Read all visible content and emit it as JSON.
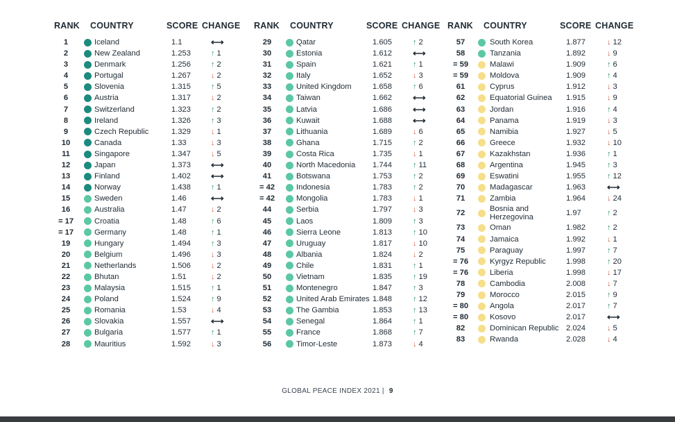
{
  "headers": {
    "rank": "RANK",
    "country": "COUNTRY",
    "score": "SCORE",
    "change": "CHANGE"
  },
  "colors": {
    "tier1": "#1d8a7e",
    "tier2": "#5cc7a4",
    "tier3": "#f6de8a",
    "up": "#2a8f5b",
    "down": "#d0573c"
  },
  "footer": {
    "text": "GLOBAL PEACE INDEX 2021",
    "separator": "|",
    "page": "9"
  },
  "columns": [
    [
      {
        "rank": "1",
        "country": "Iceland",
        "score": "1.1",
        "dir": "same",
        "delta": "",
        "tier": 1
      },
      {
        "rank": "2",
        "country": "New Zealand",
        "score": "1.253",
        "dir": "up",
        "delta": "1",
        "tier": 1
      },
      {
        "rank": "3",
        "country": "Denmark",
        "score": "1.256",
        "dir": "up",
        "delta": "2",
        "tier": 1
      },
      {
        "rank": "4",
        "country": "Portugal",
        "score": "1.267",
        "dir": "down",
        "delta": "2",
        "tier": 1
      },
      {
        "rank": "5",
        "country": "Slovenia",
        "score": "1.315",
        "dir": "up",
        "delta": "5",
        "tier": 1
      },
      {
        "rank": "6",
        "country": "Austria",
        "score": "1.317",
        "dir": "down",
        "delta": "2",
        "tier": 1
      },
      {
        "rank": "7",
        "country": "Switzerland",
        "score": "1.323",
        "dir": "up",
        "delta": "2",
        "tier": 1
      },
      {
        "rank": "8",
        "country": "Ireland",
        "score": "1.326",
        "dir": "up",
        "delta": "3",
        "tier": 1
      },
      {
        "rank": "9",
        "country": "Czech Republic",
        "score": "1.329",
        "dir": "down",
        "delta": "1",
        "tier": 1
      },
      {
        "rank": "10",
        "country": "Canada",
        "score": "1.33",
        "dir": "down",
        "delta": "3",
        "tier": 1
      },
      {
        "rank": "11",
        "country": "Singapore",
        "score": "1.347",
        "dir": "down",
        "delta": "5",
        "tier": 1
      },
      {
        "rank": "12",
        "country": "Japan",
        "score": "1.373",
        "dir": "same",
        "delta": "",
        "tier": 1
      },
      {
        "rank": "13",
        "country": "Finland",
        "score": "1.402",
        "dir": "same",
        "delta": "",
        "tier": 1
      },
      {
        "rank": "14",
        "country": "Norway",
        "score": "1.438",
        "dir": "up",
        "delta": "1",
        "tier": 1
      },
      {
        "rank": "15",
        "country": "Sweden",
        "score": "1.46",
        "dir": "same",
        "delta": "",
        "tier": 2
      },
      {
        "rank": "16",
        "country": "Australia",
        "score": "1.47",
        "dir": "down",
        "delta": "2",
        "tier": 2
      },
      {
        "rank": "= 17",
        "country": "Croatia",
        "score": "1.48",
        "dir": "up",
        "delta": "6",
        "tier": 2
      },
      {
        "rank": "= 17",
        "country": "Germany",
        "score": "1.48",
        "dir": "up",
        "delta": "1",
        "tier": 2
      },
      {
        "rank": "19",
        "country": "Hungary",
        "score": "1.494",
        "dir": "up",
        "delta": "3",
        "tier": 2
      },
      {
        "rank": "20",
        "country": "Belgium",
        "score": "1.496",
        "dir": "down",
        "delta": "3",
        "tier": 2
      },
      {
        "rank": "21",
        "country": "Netherlands",
        "score": "1.506",
        "dir": "down",
        "delta": "2",
        "tier": 2
      },
      {
        "rank": "22",
        "country": "Bhutan",
        "score": "1.51",
        "dir": "down",
        "delta": "2",
        "tier": 2
      },
      {
        "rank": "23",
        "country": "Malaysia",
        "score": "1.515",
        "dir": "up",
        "delta": "1",
        "tier": 2
      },
      {
        "rank": "24",
        "country": "Poland",
        "score": "1.524",
        "dir": "up",
        "delta": "9",
        "tier": 2
      },
      {
        "rank": "25",
        "country": "Romania",
        "score": "1.53",
        "dir": "down",
        "delta": "4",
        "tier": 2
      },
      {
        "rank": "26",
        "country": "Slovakia",
        "score": "1.557",
        "dir": "same",
        "delta": "",
        "tier": 2
      },
      {
        "rank": "27",
        "country": "Bulgaria",
        "score": "1.577",
        "dir": "up",
        "delta": "1",
        "tier": 2
      },
      {
        "rank": "28",
        "country": "Mauritius",
        "score": "1.592",
        "dir": "down",
        "delta": "3",
        "tier": 2
      }
    ],
    [
      {
        "rank": "29",
        "country": "Qatar",
        "score": "1.605",
        "dir": "up",
        "delta": "2",
        "tier": 2
      },
      {
        "rank": "30",
        "country": "Estonia",
        "score": "1.612",
        "dir": "same",
        "delta": "",
        "tier": 2
      },
      {
        "rank": "31",
        "country": "Spain",
        "score": "1.621",
        "dir": "up",
        "delta": "1",
        "tier": 2
      },
      {
        "rank": "32",
        "country": "Italy",
        "score": "1.652",
        "dir": "down",
        "delta": "3",
        "tier": 2
      },
      {
        "rank": "33",
        "country": "United Kingdom",
        "score": "1.658",
        "dir": "up",
        "delta": "6",
        "tier": 2
      },
      {
        "rank": "34",
        "country": "Taiwan",
        "score": "1.662",
        "dir": "same",
        "delta": "",
        "tier": 2
      },
      {
        "rank": "35",
        "country": "Latvia",
        "score": "1.686",
        "dir": "same",
        "delta": "",
        "tier": 2
      },
      {
        "rank": "36",
        "country": "Kuwait",
        "score": "1.688",
        "dir": "same",
        "delta": "",
        "tier": 2
      },
      {
        "rank": "37",
        "country": "Lithuania",
        "score": "1.689",
        "dir": "down",
        "delta": "6",
        "tier": 2
      },
      {
        "rank": "38",
        "country": "Ghana",
        "score": "1.715",
        "dir": "up",
        "delta": "2",
        "tier": 2
      },
      {
        "rank": "39",
        "country": "Costa Rica",
        "score": "1.735",
        "dir": "down",
        "delta": "1",
        "tier": 2
      },
      {
        "rank": "40",
        "country": "North Macedonia",
        "score": "1.744",
        "dir": "up",
        "delta": "11",
        "tier": 2
      },
      {
        "rank": "41",
        "country": "Botswana",
        "score": "1.753",
        "dir": "up",
        "delta": "2",
        "tier": 2
      },
      {
        "rank": "= 42",
        "country": "Indonesia",
        "score": "1.783",
        "dir": "up",
        "delta": "2",
        "tier": 2
      },
      {
        "rank": "= 42",
        "country": "Mongolia",
        "score": "1.783",
        "dir": "down",
        "delta": "1",
        "tier": 2
      },
      {
        "rank": "44",
        "country": "Serbia",
        "score": "1.797",
        "dir": "down",
        "delta": "3",
        "tier": 2
      },
      {
        "rank": "45",
        "country": "Laos",
        "score": "1.809",
        "dir": "up",
        "delta": "3",
        "tier": 2
      },
      {
        "rank": "46",
        "country": "Sierra Leone",
        "score": "1.813",
        "dir": "up",
        "delta": "10",
        "tier": 2
      },
      {
        "rank": "47",
        "country": "Uruguay",
        "score": "1.817",
        "dir": "down",
        "delta": "10",
        "tier": 2
      },
      {
        "rank": "48",
        "country": "Albania",
        "score": "1.824",
        "dir": "down",
        "delta": "2",
        "tier": 2
      },
      {
        "rank": "49",
        "country": "Chile",
        "score": "1.831",
        "dir": "up",
        "delta": "1",
        "tier": 2
      },
      {
        "rank": "50",
        "country": "Vietnam",
        "score": "1.835",
        "dir": "up",
        "delta": "19",
        "tier": 2
      },
      {
        "rank": "51",
        "country": "Montenegro",
        "score": "1.847",
        "dir": "up",
        "delta": "3",
        "tier": 2
      },
      {
        "rank": "52",
        "country": "United Arab Emirates",
        "score": "1.848",
        "dir": "up",
        "delta": "12",
        "tier": 2
      },
      {
        "rank": "53",
        "country": "The Gambia",
        "score": "1.853",
        "dir": "up",
        "delta": "13",
        "tier": 2
      },
      {
        "rank": "54",
        "country": "Senegal",
        "score": "1.864",
        "dir": "up",
        "delta": "1",
        "tier": 2
      },
      {
        "rank": "55",
        "country": "France",
        "score": "1.868",
        "dir": "up",
        "delta": "7",
        "tier": 2
      },
      {
        "rank": "56",
        "country": "Timor-Leste",
        "score": "1.873",
        "dir": "down",
        "delta": "4",
        "tier": 2
      }
    ],
    [
      {
        "rank": "57",
        "country": "South Korea",
        "score": "1.877",
        "dir": "down",
        "delta": "12",
        "tier": 2
      },
      {
        "rank": "58",
        "country": "Tanzania",
        "score": "1.892",
        "dir": "down",
        "delta": "9",
        "tier": 2
      },
      {
        "rank": "= 59",
        "country": "Malawi",
        "score": "1.909",
        "dir": "up",
        "delta": "6",
        "tier": 3
      },
      {
        "rank": "= 59",
        "country": "Moldova",
        "score": "1.909",
        "dir": "up",
        "delta": "4",
        "tier": 3
      },
      {
        "rank": "61",
        "country": "Cyprus",
        "score": "1.912",
        "dir": "down",
        "delta": "3",
        "tier": 3
      },
      {
        "rank": "62",
        "country": "Equatorial Guinea",
        "score": "1.915",
        "dir": "down",
        "delta": "9",
        "tier": 3
      },
      {
        "rank": "63",
        "country": "Jordan",
        "score": "1.916",
        "dir": "up",
        "delta": "4",
        "tier": 3
      },
      {
        "rank": "64",
        "country": "Panama",
        "score": "1.919",
        "dir": "down",
        "delta": "3",
        "tier": 3
      },
      {
        "rank": "65",
        "country": "Namibia",
        "score": "1.927",
        "dir": "down",
        "delta": "5",
        "tier": 3
      },
      {
        "rank": "66",
        "country": "Greece",
        "score": "1.932",
        "dir": "down",
        "delta": "10",
        "tier": 3
      },
      {
        "rank": "67",
        "country": "Kazakhstan",
        "score": "1.936",
        "dir": "up",
        "delta": "1",
        "tier": 3
      },
      {
        "rank": "68",
        "country": "Argentina",
        "score": "1.945",
        "dir": "up",
        "delta": "3",
        "tier": 3
      },
      {
        "rank": "69",
        "country": "Eswatini",
        "score": "1.955",
        "dir": "up",
        "delta": "12",
        "tier": 3
      },
      {
        "rank": "70",
        "country": "Madagascar",
        "score": "1.963",
        "dir": "same",
        "delta": "",
        "tier": 3
      },
      {
        "rank": "71",
        "country": "Zambia",
        "score": "1.964",
        "dir": "down",
        "delta": "24",
        "tier": 3
      },
      {
        "rank": "72",
        "country": "Bosnia and Herzegovina",
        "score": "1.97",
        "dir": "up",
        "delta": "2",
        "tier": 3,
        "tall": true
      },
      {
        "rank": "73",
        "country": "Oman",
        "score": "1.982",
        "dir": "up",
        "delta": "2",
        "tier": 3
      },
      {
        "rank": "74",
        "country": "Jamaica",
        "score": "1.992",
        "dir": "down",
        "delta": "1",
        "tier": 3
      },
      {
        "rank": "75",
        "country": "Paraguay",
        "score": "1.997",
        "dir": "up",
        "delta": "7",
        "tier": 3
      },
      {
        "rank": "= 76",
        "country": "Kyrgyz Republic",
        "score": "1.998",
        "dir": "up",
        "delta": "20",
        "tier": 3
      },
      {
        "rank": "= 76",
        "country": "Liberia",
        "score": "1.998",
        "dir": "down",
        "delta": "17",
        "tier": 3
      },
      {
        "rank": "78",
        "country": "Cambodia",
        "score": "2.008",
        "dir": "down",
        "delta": "7",
        "tier": 3
      },
      {
        "rank": "79",
        "country": "Morocco",
        "score": "2.015",
        "dir": "up",
        "delta": "9",
        "tier": 3
      },
      {
        "rank": "= 80",
        "country": "Angola",
        "score": "2.017",
        "dir": "up",
        "delta": "7",
        "tier": 3
      },
      {
        "rank": "= 80",
        "country": "Kosovo",
        "score": "2.017",
        "dir": "same",
        "delta": "",
        "tier": 3
      },
      {
        "rank": "82",
        "country": "Dominican Republic",
        "score": "2.024",
        "dir": "down",
        "delta": "5",
        "tier": 3
      },
      {
        "rank": "83",
        "country": "Rwanda",
        "score": "2.028",
        "dir": "down",
        "delta": "4",
        "tier": 3
      }
    ]
  ]
}
